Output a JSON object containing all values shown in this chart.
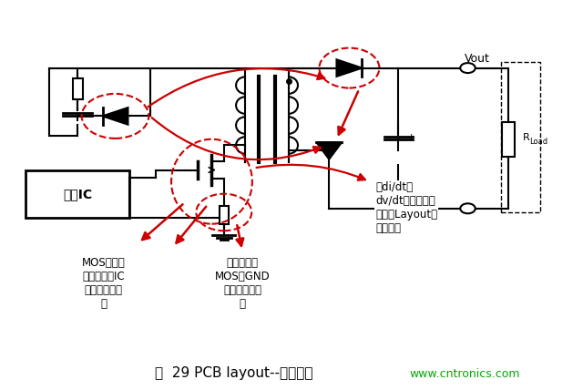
{
  "bg_color": "#ffffff",
  "fig_width": 6.4,
  "fig_height": 4.28,
  "dpi": 100,
  "caption": "图  29 PCB layout--高频走线",
  "caption_fontsize": 11,
  "website": "www.cntronics.com",
  "website_color": "#00aa00",
  "website_fontsize": 9,
  "label1_text": "MOS和检流\n电阻到控制IC\n距离应尽可能\n短",
  "label2_text": "检流电阻与\nMOS和GND\n的距离尽可能\n短",
  "label3_text": "高di/dt、\ndv/dt，引线尽可\n能短，Layout避\n免走直角",
  "vout_label": "Vout",
  "rload_label": "R",
  "rload_sub": "Load",
  "ctrl_ic_label": "控制IC",
  "circuit_color": "#000000",
  "red_color": "#cc0000"
}
